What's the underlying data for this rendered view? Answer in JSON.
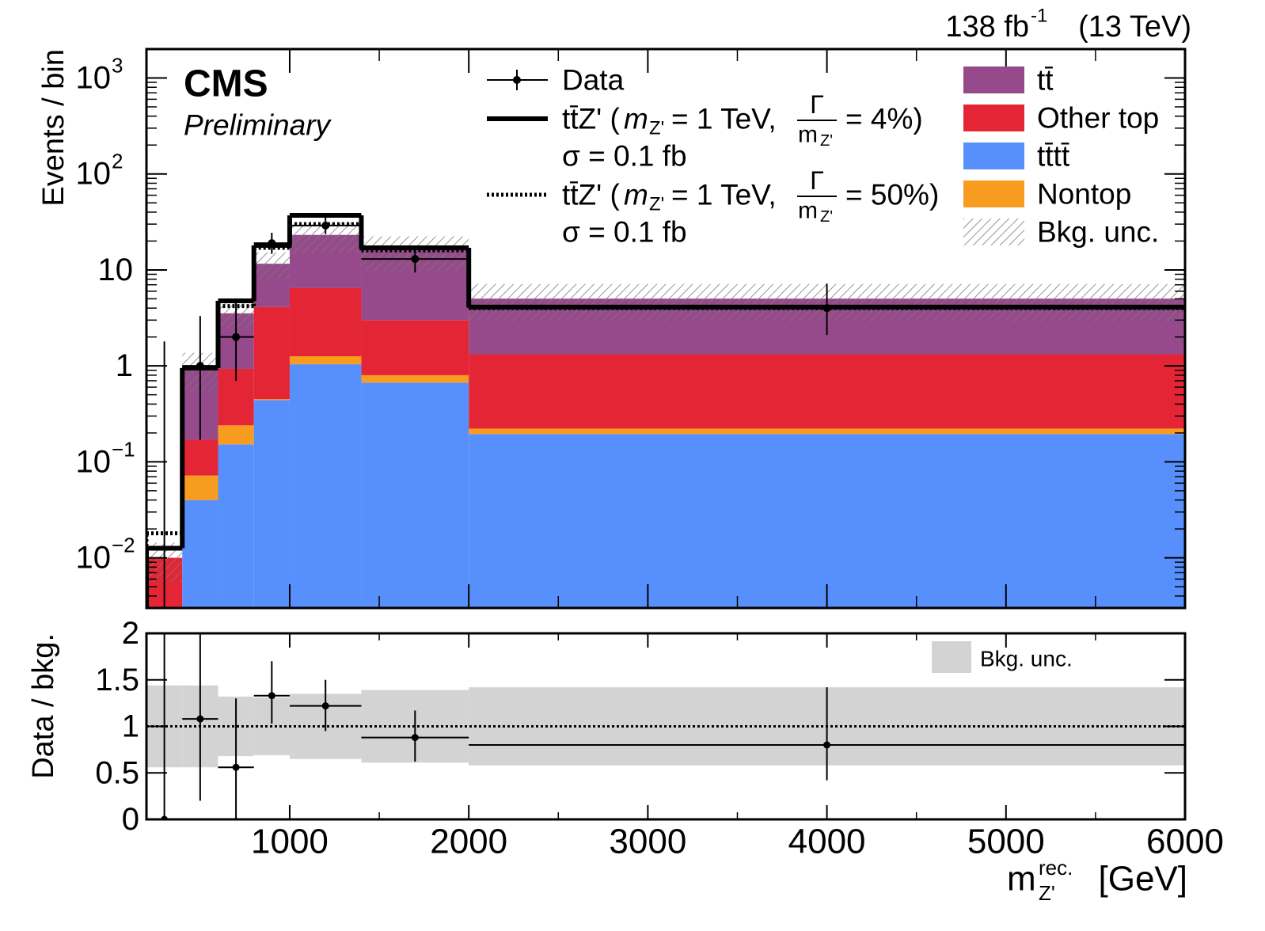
{
  "chart_data": [
    {
      "type": "stacked_histogram",
      "lumi": "138 fb",
      "lumi_exponent": "-1",
      "energy": "(13 TeV)",
      "experiment": "CMS",
      "status": "Preliminary",
      "y_label": "Events / bin",
      "bins": [
        200,
        400,
        600,
        800,
        1000,
        1400,
        2000,
        6000
      ],
      "xlim": [
        200,
        6000
      ],
      "xticks": [
        1000,
        2000,
        3000,
        4000,
        5000,
        6000
      ],
      "ylim": [
        0.003,
        2000
      ],
      "log_y": true,
      "yticks": [
        {
          "value": 0.01,
          "label": "10",
          "exponent": "−2"
        },
        {
          "value": 0.1,
          "label": "10",
          "exponent": "−1"
        },
        1,
        10,
        {
          "value": 100,
          "label": "10",
          "exponent": "2"
        },
        {
          "value": 1000,
          "label": "10",
          "exponent": "3"
        }
      ],
      "series": [
        {
          "name": "tt̄",
          "color": "#964a8b",
          "values": [
            0,
            0.78,
            2.6,
            7.5,
            16.7,
            13.1,
            3.7
          ]
        },
        {
          "name": "Other top",
          "color": "#e42536",
          "values": [
            0.01,
            0.098,
            0.69,
            3.65,
            5.2,
            2.2,
            1.1
          ]
        },
        {
          "name": "tt̄tt̄",
          "color": "#5790fc",
          "values": [
            0,
            0.04,
            0.152,
            0.44,
            1.04,
            0.67,
            0.195
          ]
        },
        {
          "name": "Nontop",
          "color": "#f89c20",
          "values": [
            0,
            0.032,
            0.088,
            0.01,
            0.22,
            0.13,
            0.027
          ]
        }
      ],
      "bkg_unc_name": "Bkg. unc.",
      "signals": [
        {
          "name": "tt̄Z' (",
          "mass_symbol": "m",
          "mass_sub": "Z'",
          "mass_value": "= 1 TeV,",
          "width_num": "Γ",
          "width_den": "m",
          "width_den_sub": "Z'",
          "width_value": "= 4%)",
          "xsec": "σ = 0.1 fb",
          "style": "solid",
          "color": "#000000",
          "values": [
            0.0126,
            0.95,
            4.76,
            18,
            37,
            17,
            4.1
          ]
        },
        {
          "name": "tt̄Z' (",
          "mass_symbol": "m",
          "mass_sub": "Z'",
          "mass_value": "= 1 TeV,",
          "width_num": "Γ",
          "width_den": "m",
          "width_den_sub": "Z'",
          "width_value": "= 50%)",
          "xsec": "σ = 0.1 fb",
          "style": "dotted",
          "color": "#000000",
          "values": [
            0.018,
            0.95,
            4.2,
            17,
            30,
            16,
            4.0
          ]
        }
      ],
      "data": {
        "name": "Data",
        "x": [
          300,
          500,
          700,
          900,
          1200,
          1700,
          4000
        ],
        "values": [
          0,
          1,
          2,
          19,
          29,
          13,
          4
        ],
        "err_low": [
          0,
          0.83,
          1.3,
          4.3,
          5.4,
          3.6,
          1.9
        ],
        "err_high": [
          1.8,
          2.3,
          2.6,
          5.4,
          6.4,
          4.7,
          3.2
        ]
      }
    },
    {
      "type": "ratio",
      "y_label": "Data / bkg.",
      "x_label": "m",
      "x_label_sup": "rec.",
      "x_label_sub": "Z'",
      "x_label_unit": "[GeV]",
      "ylim": [
        0,
        2
      ],
      "yticks": [
        0,
        0.5,
        1,
        1.5,
        2
      ],
      "reference": 1,
      "band": {
        "name": "Bkg. unc.",
        "color": "#d3d3d3",
        "low": [
          0.56,
          0.56,
          0.68,
          0.69,
          0.65,
          0.61,
          0.58
        ],
        "high": [
          1.44,
          1.44,
          1.32,
          1.31,
          1.35,
          1.39,
          1.42
        ]
      },
      "data": {
        "x": [
          300,
          500,
          700,
          900,
          1200,
          1700,
          4000
        ],
        "values": [
          0,
          1.08,
          0.56,
          1.33,
          1.22,
          0.88,
          0.8
        ],
        "err_low": [
          0,
          0.88,
          0.56,
          0.3,
          0.27,
          0.26,
          0.38
        ],
        "err_high": [
          2.5,
          1.2,
          0.74,
          0.37,
          0.28,
          0.29,
          0.62
        ]
      }
    }
  ]
}
